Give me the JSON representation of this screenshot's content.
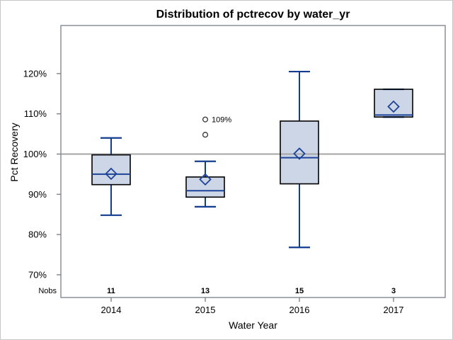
{
  "window": {
    "background": "#ffffff",
    "border_color": "#c6c6c6"
  },
  "chart": {
    "title": "Distribution of pctrecov by water_yr",
    "y_axis": {
      "label": "Pct Recovery",
      "tick_labels_top_to_bottom": [
        "120%",
        "110%",
        "100%",
        "90%",
        "80%",
        "70%"
      ]
    },
    "x_axis": {
      "label": "Water Year",
      "tick_labels": [
        "2014",
        "2015",
        "2016",
        "2017"
      ]
    },
    "nobs_label": "Nobs",
    "nobs_values": [
      "11",
      "13",
      "15",
      "3"
    ],
    "outlier_annotation": "109%"
  },
  "colors": {
    "box_fill": "#ccd6e6",
    "box_border": "#000000",
    "whisker": "#123d8f",
    "median": "#1d4499",
    "mean_marker": "#1d4499",
    "outlier": "#333333",
    "reference_line": "#a6a6a6",
    "frame": "#8b9196",
    "tick": "#777b80",
    "text": "#000000"
  },
  "chart_data": {
    "type": "box",
    "title": "Distribution of pctrecov by water_yr",
    "xlabel": "Water Year",
    "ylabel": "Pct Recovery",
    "categories": [
      "2014",
      "2015",
      "2016",
      "2017"
    ],
    "nobs": [
      11,
      13,
      15,
      3
    ],
    "yticks": [
      70,
      80,
      90,
      100,
      110,
      120
    ],
    "ytick_suffix": "%",
    "ylim": [
      64.4,
      132
    ],
    "reference_line": 100,
    "grid": false,
    "legend": "none",
    "series": [
      {
        "category": "2014",
        "nobs": 11,
        "whisker_low": 84.8,
        "q1": 92.4,
        "median": 95.0,
        "mean": 95.1,
        "q3": 99.8,
        "whisker_high": 104.0,
        "outliers": []
      },
      {
        "category": "2015",
        "nobs": 13,
        "whisker_low": 86.9,
        "q1": 89.3,
        "median": 90.9,
        "mean": 93.7,
        "q3": 94.3,
        "whisker_high": 98.2,
        "outliers": [
          {
            "value": 104.8
          },
          {
            "value": 108.6,
            "label": "109%"
          }
        ]
      },
      {
        "category": "2016",
        "nobs": 15,
        "whisker_low": 76.8,
        "q1": 92.6,
        "median": 99.1,
        "mean": 100.1,
        "q3": 108.2,
        "whisker_high": 120.5,
        "outliers": []
      },
      {
        "category": "2017",
        "nobs": 3,
        "whisker_low": 109.2,
        "q1": 109.2,
        "median": 109.7,
        "mean": 111.8,
        "q3": 116.1,
        "whisker_high": 116.1,
        "outliers": []
      }
    ]
  }
}
